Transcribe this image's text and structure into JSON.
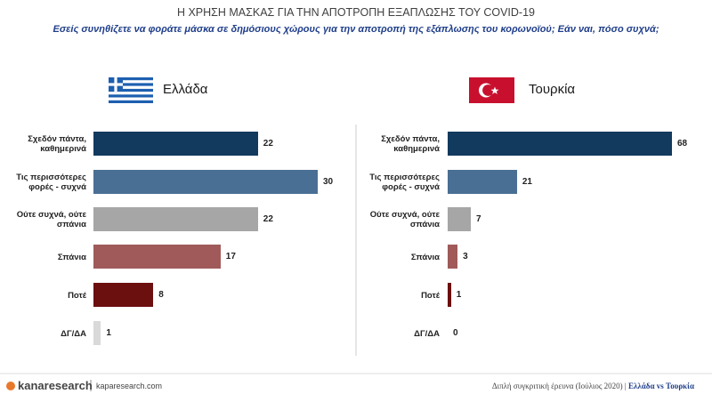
{
  "title": "Η ΧΡΗΣΗ ΜΑΣΚΑΣ ΓΙΑ ΤΗΝ ΑΠΟΤΡΟΠΗ ΕΞΑΠΛΩΣΗΣ ΤΟΥ COVID-19",
  "subtitle": "Εσείς συνηθίζετε να φοράτε μάσκα σε δημόσιους χώρους για την αποτροπή της εξάπλωσης του κορωνοϊού; Εάν ναι, πόσο συχνά;",
  "footer": {
    "brand": "kanaresearch",
    "site": "kaparesearch.com",
    "survey": "Διπλή συγκριτική έρευνα (Ιούλιος 2020) |",
    "comparison": "Ελλάδα vs Τουρκία"
  },
  "chart_data": [
    {
      "type": "bar",
      "orientation": "horizontal",
      "title": "Ελλάδα",
      "categories": [
        "Σχεδόν πάντα, καθημερινά",
        "Τις περισσότερες φορές - συχνά",
        "Ούτε συχνά, ούτε σπάνια",
        "Σπάνια",
        "Ποτέ",
        "ΔΓ/ΔΑ"
      ],
      "values": [
        22,
        30,
        22,
        17,
        8,
        1
      ],
      "colors": [
        "#123a5e",
        "#4a6f94",
        "#a6a6a6",
        "#a05a5a",
        "#6b0f0f",
        "#d9d9d9"
      ],
      "xlim": [
        0,
        30
      ]
    },
    {
      "type": "bar",
      "orientation": "horizontal",
      "title": "Τουρκία",
      "categories": [
        "Σχεδόν πάντα, καθημερινά",
        "Τις περισσότερες φορές - συχνά",
        "Ούτε συχνά, ούτε σπάνια",
        "Σπάνια",
        "Ποτέ",
        "ΔΓ/ΔΑ"
      ],
      "values": [
        68,
        21,
        7,
        3,
        1,
        0
      ],
      "colors": [
        "#123a5e",
        "#4a6f94",
        "#a6a6a6",
        "#a05a5a",
        "#6b0f0f",
        "#d9d9d9"
      ],
      "xlim": [
        0,
        68
      ]
    }
  ]
}
